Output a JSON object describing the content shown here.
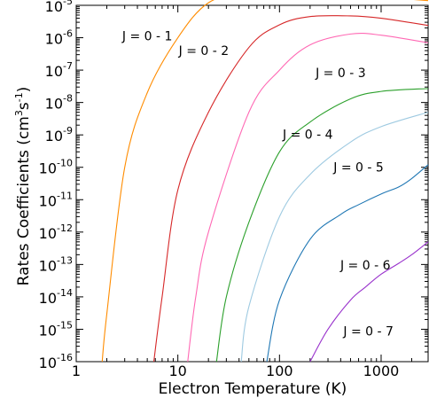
{
  "chart_data": {
    "type": "line",
    "xlabel": "Electron Temperature (K)",
    "ylabel": "Rates Coefficients (cm",
    "ylabel_sup": "3",
    "ylabel_mid": "s",
    "ylabel_sup2": "-1",
    "ylabel_end": ")",
    "xscale": "log",
    "yscale": "log",
    "xlim": [
      1,
      2900
    ],
    "ylim": [
      1e-16,
      1e-05
    ],
    "x_ticks": [
      {
        "value": 1,
        "label": "1"
      },
      {
        "value": 10,
        "label": "10"
      },
      {
        "value": 100,
        "label": "100"
      },
      {
        "value": 1000,
        "label": "1000"
      }
    ],
    "y_ticks": [
      {
        "value": -5,
        "base": "10",
        "exp": "-5"
      },
      {
        "value": -6,
        "base": "10",
        "exp": "-6"
      },
      {
        "value": -7,
        "base": "10",
        "exp": "-7"
      },
      {
        "value": -8,
        "base": "10",
        "exp": "-8"
      },
      {
        "value": -9,
        "base": "10",
        "exp": "-9"
      },
      {
        "value": -10,
        "base": "10",
        "exp": "-10"
      },
      {
        "value": -11,
        "base": "10",
        "exp": "-11"
      },
      {
        "value": -12,
        "base": "10",
        "exp": "-12"
      },
      {
        "value": -13,
        "base": "10",
        "exp": "-13"
      },
      {
        "value": -14,
        "base": "10",
        "exp": "-14"
      },
      {
        "value": -15,
        "base": "10",
        "exp": "-15"
      },
      {
        "value": -16,
        "base": "10",
        "exp": "-16"
      }
    ],
    "series": [
      {
        "name": "J = 0 - 1",
        "color": "#ff8c00",
        "label_at": [
          5,
          8.4e-07
        ],
        "points": [
          [
            1.8,
            1e-16
          ],
          [
            2,
            3e-15
          ],
          [
            3,
            1e-10
          ],
          [
            5,
            2e-08
          ],
          [
            10,
            1e-06
          ],
          [
            20,
            1.2e-05
          ],
          [
            50,
            2.8e-05
          ],
          [
            100,
            3.2e-05
          ],
          [
            200,
            2.9e-05
          ],
          [
            500,
            2.2e-05
          ],
          [
            1000,
            1.8e-05
          ],
          [
            2900,
            1.4e-05
          ]
        ]
      },
      {
        "name": "J = 0 - 2",
        "color": "#d62728",
        "label_at": [
          18,
          2.9e-07
        ],
        "points": [
          [
            5.8,
            1e-16
          ],
          [
            7,
            1e-14
          ],
          [
            10,
            2e-11
          ],
          [
            20,
            5e-09
          ],
          [
            50,
            5e-07
          ],
          [
            100,
            2.5e-06
          ],
          [
            200,
            4.5e-06
          ],
          [
            500,
            4.7e-06
          ],
          [
            1000,
            4e-06
          ],
          [
            2900,
            2.4e-06
          ]
        ]
      },
      {
        "name": "J = 0 - 3",
        "color": "#ff69b4",
        "label_at": [
          400,
          6e-08
        ],
        "points": [
          [
            12.5,
            1e-16
          ],
          [
            15,
            1e-14
          ],
          [
            20,
            1e-12
          ],
          [
            50,
            5e-09
          ],
          [
            100,
            1e-07
          ],
          [
            200,
            6e-07
          ],
          [
            500,
            1.3e-06
          ],
          [
            1000,
            1.2e-06
          ],
          [
            2900,
            7e-07
          ]
        ]
      },
      {
        "name": "J = 0 - 4",
        "color": "#2ca02c",
        "label_at": [
          190,
          7.5e-10
        ],
        "points": [
          [
            24,
            1e-16
          ],
          [
            30,
            1e-14
          ],
          [
            50,
            2e-12
          ],
          [
            100,
            3e-10
          ],
          [
            200,
            2.5e-09
          ],
          [
            500,
            1.3e-08
          ],
          [
            1000,
            2.2e-08
          ],
          [
            2900,
            2.7e-08
          ]
        ]
      },
      {
        "name": "J = 0 - 5",
        "color": "#9ecae1",
        "label_at": [
          600,
          7.5e-11
        ],
        "points": [
          [
            42,
            1e-16
          ],
          [
            50,
            5e-15
          ],
          [
            100,
            3e-12
          ],
          [
            200,
            6e-11
          ],
          [
            500,
            6e-10
          ],
          [
            1000,
            1.8e-09
          ],
          [
            2900,
            5e-09
          ]
        ]
      },
      {
        "name": "J = 0 - 6",
        "color": "#1f77b4",
        "label_at": [
          700,
          7e-14
        ],
        "points": [
          [
            75,
            1e-16
          ],
          [
            100,
            8e-15
          ],
          [
            200,
            6e-13
          ],
          [
            400,
            3.5e-12
          ],
          [
            600,
            7e-12
          ],
          [
            1000,
            1.5e-11
          ],
          [
            1500,
            2.5e-11
          ],
          [
            2000,
            4.5e-11
          ],
          [
            2900,
            1.2e-10
          ]
        ]
      },
      {
        "name": "J = 0 - 7",
        "color": "#9932cc",
        "label_at": [
          750,
          6.5e-16
        ],
        "points": [
          [
            200,
            1e-16
          ],
          [
            300,
            1e-15
          ],
          [
            500,
            8e-15
          ],
          [
            700,
            2e-14
          ],
          [
            1000,
            5e-14
          ],
          [
            1500,
            1.1e-13
          ],
          [
            2000,
            2e-13
          ],
          [
            2900,
            5e-13
          ]
        ]
      }
    ]
  }
}
